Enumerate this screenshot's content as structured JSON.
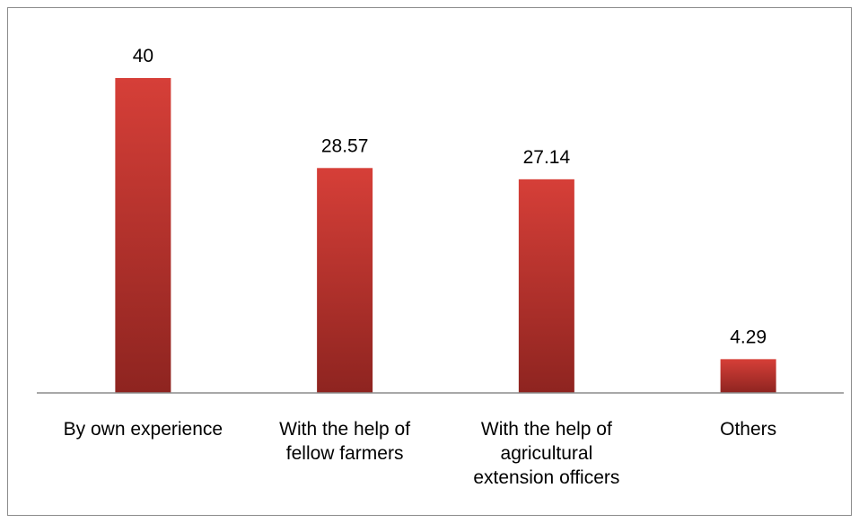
{
  "chart_data": {
    "type": "bar",
    "categories": [
      "By own experience",
      "With the help of fellow farmers",
      "With the help of agricultural extension officers",
      "Others"
    ],
    "category_lines": [
      [
        "By own experience"
      ],
      [
        "With the help of",
        "fellow farmers"
      ],
      [
        "With the help of",
        "agricultural",
        "extension officers"
      ],
      [
        "Others"
      ]
    ],
    "values": [
      40,
      28.57,
      27.14,
      4.29
    ],
    "value_labels": [
      "40",
      "28.57",
      "27.14",
      "4.29"
    ],
    "title": "",
    "xlabel": "",
    "ylabel": "",
    "ylim": [
      0,
      40
    ],
    "grid": false,
    "legend": "none",
    "bar_color": "#c0392b",
    "bar_color_dark": "#8e2420"
  }
}
